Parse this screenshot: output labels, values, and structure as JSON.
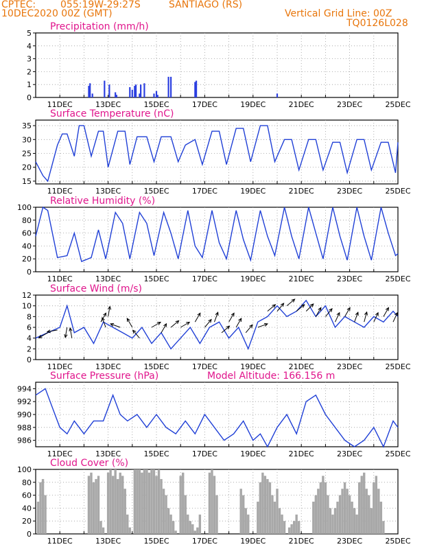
{
  "header": {
    "source": "CPTEC:",
    "coords": "055:19W-29:27S",
    "location": "SANTIAGO (RS)",
    "init_time": "10DEC2020 00Z (GMT)",
    "grid_note": "Vertical Grid Line: 00Z",
    "model": "TQ0126L028",
    "text_color": "#e8750a",
    "title_color": "#e0158c",
    "line_color": "#1f3fd6",
    "bar_color": "#2b3fe0",
    "cloud_color": "#a8a8a8"
  },
  "x_axis": {
    "ticks": [
      "11DEC",
      "13DEC",
      "15DEC",
      "17DEC",
      "19DEC",
      "21DEC",
      "23DEC",
      "25DEC"
    ],
    "range_days": [
      10,
      25
    ]
  },
  "chart_data": [
    {
      "type": "bar",
      "title": "Precipitation (mm/h)",
      "ylim": [
        0,
        5
      ],
      "yticks": [
        "0",
        "1",
        "2",
        "3",
        "4",
        "5"
      ],
      "grid": true,
      "x": [
        12.2,
        12.25,
        12.35,
        12.85,
        13.05,
        13.3,
        13.35,
        13.9,
        14.0,
        14.1,
        14.15,
        14.3,
        14.35,
        14.5,
        14.9,
        15.0,
        15.05,
        15.5,
        15.6,
        16.6,
        16.65,
        20.0
      ],
      "values": [
        0.9,
        1.1,
        0.3,
        1.3,
        1.0,
        0.4,
        0.2,
        0.8,
        0.6,
        0.9,
        1.0,
        0.3,
        1.0,
        1.1,
        0.3,
        0.5,
        0.2,
        1.6,
        1.6,
        1.2,
        1.3,
        0.3
      ]
    },
    {
      "type": "line",
      "title": "Surface Temperature (nC)",
      "ylim": [
        14,
        37
      ],
      "yticks": [
        "15",
        "20",
        "25",
        "30",
        "35"
      ],
      "grid": true,
      "x": [
        10,
        10.3,
        10.5,
        10.9,
        11.1,
        11.3,
        11.6,
        11.8,
        12.0,
        12.3,
        12.6,
        12.8,
        13.0,
        13.4,
        13.7,
        13.9,
        14.2,
        14.6,
        14.9,
        15.2,
        15.6,
        15.9,
        16.2,
        16.6,
        16.9,
        17.3,
        17.6,
        17.9,
        18.3,
        18.6,
        18.9,
        19.3,
        19.6,
        19.9,
        20.3,
        20.6,
        20.9,
        21.3,
        21.6,
        21.9,
        22.3,
        22.6,
        22.9,
        23.3,
        23.6,
        23.9,
        24.3,
        24.6,
        24.9,
        25.0
      ],
      "values": [
        22,
        17,
        15,
        28,
        32,
        32,
        24,
        35,
        35,
        24,
        33,
        33,
        20,
        33,
        33,
        21,
        31,
        31,
        22,
        31,
        31,
        22,
        28,
        30,
        21,
        33,
        33,
        21,
        34,
        34,
        22,
        35,
        35,
        22,
        30,
        30,
        19,
        30,
        30,
        19,
        29,
        29,
        18,
        30,
        30,
        19,
        29,
        29,
        18,
        29
      ]
    },
    {
      "type": "line",
      "title": "Relative Humidity (%)",
      "ylim": [
        0,
        100
      ],
      "yticks": [
        "0",
        "20",
        "40",
        "60",
        "80",
        "100"
      ],
      "grid": true,
      "x": [
        10,
        10.3,
        10.5,
        10.9,
        11.3,
        11.6,
        11.9,
        12.3,
        12.6,
        12.9,
        13.3,
        13.6,
        13.9,
        14.3,
        14.6,
        14.9,
        15.3,
        15.6,
        15.9,
        16.3,
        16.6,
        16.9,
        17.3,
        17.6,
        17.9,
        18.3,
        18.6,
        18.9,
        19.3,
        19.6,
        19.9,
        20.3,
        20.6,
        20.9,
        21.3,
        21.6,
        21.9,
        22.3,
        22.6,
        22.9,
        23.3,
        23.6,
        23.9,
        24.3,
        24.6,
        24.9,
        25.0
      ],
      "values": [
        55,
        100,
        95,
        22,
        25,
        60,
        16,
        22,
        65,
        20,
        92,
        75,
        20,
        92,
        75,
        25,
        92,
        60,
        20,
        95,
        40,
        22,
        95,
        45,
        20,
        95,
        50,
        18,
        95,
        55,
        25,
        100,
        55,
        20,
        100,
        60,
        20,
        100,
        55,
        18,
        100,
        55,
        18,
        100,
        60,
        25,
        28
      ]
    },
    {
      "type": "line",
      "title": "Surface Wind (m/s)",
      "ylim": [
        0,
        12
      ],
      "yticks": [
        "0",
        "2",
        "4",
        "6",
        "8",
        "10",
        "12"
      ],
      "grid": true,
      "x": [
        10,
        10.5,
        11.0,
        11.3,
        11.6,
        12.0,
        12.4,
        12.8,
        13.2,
        13.6,
        14.0,
        14.4,
        14.8,
        15.2,
        15.6,
        16.0,
        16.4,
        16.8,
        17.2,
        17.6,
        18.0,
        18.4,
        18.8,
        19.2,
        19.6,
        20.0,
        20.4,
        20.8,
        21.2,
        21.6,
        22.0,
        22.4,
        22.8,
        23.2,
        23.6,
        24.0,
        24.4,
        24.8,
        25.0
      ],
      "values": [
        4,
        5,
        6,
        10,
        5,
        6,
        3,
        7,
        6,
        5,
        4,
        6,
        3,
        5,
        2,
        4,
        6,
        3,
        6,
        7,
        4,
        6,
        2,
        7,
        8,
        10,
        8,
        9,
        11,
        8,
        10,
        6,
        8,
        7,
        6,
        8,
        7,
        9,
        8
      ]
    },
    {
      "type": "line",
      "title": "Surface Pressure (hPa)",
      "subtitle": "Model Altitude: 166.156 m",
      "ylim": [
        985,
        995
      ],
      "yticks": [
        "986",
        "988",
        "990",
        "992",
        "994"
      ],
      "grid": true,
      "x": [
        10,
        10.4,
        10.7,
        11.0,
        11.3,
        11.6,
        12.0,
        12.4,
        12.8,
        13.2,
        13.5,
        13.8,
        14.2,
        14.6,
        15.0,
        15.4,
        15.8,
        16.2,
        16.6,
        17.0,
        17.4,
        17.8,
        18.2,
        18.6,
        19.0,
        19.3,
        19.6,
        20.0,
        20.4,
        20.8,
        21.2,
        21.6,
        22.0,
        22.4,
        22.8,
        23.2,
        23.6,
        24.0,
        24.4,
        24.8,
        25.0
      ],
      "values": [
        993,
        994,
        991,
        988,
        987,
        989,
        987,
        989,
        989,
        993,
        990,
        989,
        990,
        988,
        990,
        988,
        987,
        989,
        987,
        990,
        988,
        986,
        987,
        989,
        986,
        987,
        985,
        988,
        990,
        987,
        992,
        993,
        990,
        988,
        986,
        985,
        986,
        988,
        985,
        989,
        988
      ]
    },
    {
      "type": "bar",
      "title": "Cloud Cover (%)",
      "ylim": [
        0,
        100
      ],
      "yticks": [
        "0",
        "20",
        "40",
        "60",
        "80",
        "100"
      ],
      "grid": true,
      "x": [
        10.1,
        10.2,
        10.3,
        10.4,
        12.2,
        12.3,
        12.4,
        12.5,
        12.6,
        12.7,
        12.8,
        13.0,
        13.1,
        13.2,
        13.3,
        13.4,
        13.5,
        13.6,
        13.7,
        13.8,
        13.9,
        14.1,
        14.2,
        14.3,
        14.4,
        14.5,
        14.6,
        14.7,
        14.8,
        14.9,
        15.0,
        15.1,
        15.2,
        15.3,
        15.4,
        15.5,
        15.6,
        15.7,
        15.8,
        16.0,
        16.1,
        16.2,
        16.3,
        16.4,
        16.5,
        16.6,
        16.7,
        16.8,
        17.2,
        17.3,
        17.4,
        17.5,
        18.5,
        18.6,
        18.7,
        18.8,
        19.2,
        19.3,
        19.4,
        19.5,
        19.6,
        19.7,
        19.8,
        19.9,
        20.0,
        20.1,
        20.2,
        20.3,
        20.5,
        20.6,
        20.7,
        20.8,
        20.9,
        21.5,
        21.6,
        21.7,
        21.8,
        21.9,
        22.0,
        22.1,
        22.2,
        22.3,
        22.4,
        22.5,
        22.6,
        22.7,
        22.8,
        22.9,
        23.0,
        23.1,
        23.2,
        23.3,
        23.4,
        23.5,
        23.6,
        23.7,
        23.8,
        23.9,
        24.0,
        24.1,
        24.2,
        24.3,
        24.4
      ],
      "values": [
        50,
        80,
        85,
        60,
        90,
        95,
        80,
        85,
        90,
        20,
        10,
        95,
        100,
        90,
        100,
        85,
        95,
        90,
        70,
        30,
        10,
        100,
        100,
        100,
        95,
        100,
        100,
        95,
        100,
        100,
        90,
        100,
        85,
        70,
        60,
        40,
        30,
        20,
        5,
        90,
        95,
        60,
        30,
        20,
        15,
        5,
        10,
        30,
        95,
        100,
        90,
        60,
        70,
        60,
        40,
        30,
        50,
        80,
        95,
        90,
        85,
        80,
        60,
        50,
        70,
        40,
        30,
        20,
        10,
        15,
        20,
        30,
        20,
        50,
        60,
        70,
        80,
        90,
        80,
        60,
        40,
        30,
        40,
        50,
        60,
        70,
        80,
        70,
        60,
        50,
        40,
        30,
        80,
        90,
        95,
        70,
        60,
        40,
        80,
        90,
        70,
        50,
        20
      ]
    }
  ],
  "wind_arrows": [
    {
      "x": 10.5,
      "y": 5,
      "angle": 150
    },
    {
      "x": 10.9,
      "y": 5.5,
      "angle": 170
    },
    {
      "x": 11.3,
      "y": 6,
      "angle": 100
    },
    {
      "x": 11.5,
      "y": 4,
      "angle": 260
    },
    {
      "x": 12.7,
      "y": 7,
      "angle": 300
    },
    {
      "x": 12.9,
      "y": 6,
      "angle": 250
    },
    {
      "x": 13.0,
      "y": 8,
      "angle": 280
    },
    {
      "x": 13.5,
      "y": 6,
      "angle": 200
    },
    {
      "x": 14.0,
      "y": 6,
      "angle": 240
    },
    {
      "x": 14.3,
      "y": 4,
      "angle": 230
    },
    {
      "x": 14.8,
      "y": 6,
      "angle": 330
    },
    {
      "x": 15.2,
      "y": 5,
      "angle": 300
    },
    {
      "x": 15.6,
      "y": 6,
      "angle": 320
    },
    {
      "x": 16.0,
      "y": 6,
      "angle": 330
    },
    {
      "x": 16.6,
      "y": 7,
      "angle": 300
    },
    {
      "x": 17.0,
      "y": 6,
      "angle": 310
    },
    {
      "x": 17.4,
      "y": 7,
      "angle": 290
    },
    {
      "x": 17.7,
      "y": 5,
      "angle": 320
    },
    {
      "x": 18.0,
      "y": 7,
      "angle": 300
    },
    {
      "x": 18.3,
      "y": 6,
      "angle": 300
    },
    {
      "x": 18.7,
      "y": 5,
      "angle": 310
    },
    {
      "x": 19.2,
      "y": 6,
      "angle": 340
    },
    {
      "x": 19.6,
      "y": 9,
      "angle": 320
    },
    {
      "x": 20.0,
      "y": 9,
      "angle": 310
    },
    {
      "x": 20.4,
      "y": 10,
      "angle": 320
    },
    {
      "x": 20.8,
      "y": 9,
      "angle": 320
    },
    {
      "x": 21.2,
      "y": 9,
      "angle": 315
    },
    {
      "x": 21.6,
      "y": 8,
      "angle": 300
    },
    {
      "x": 22.0,
      "y": 8,
      "angle": 310
    },
    {
      "x": 22.4,
      "y": 7,
      "angle": 295
    },
    {
      "x": 22.8,
      "y": 8,
      "angle": 300
    },
    {
      "x": 23.2,
      "y": 7,
      "angle": 290
    },
    {
      "x": 23.6,
      "y": 7,
      "angle": 285
    },
    {
      "x": 24.0,
      "y": 7,
      "angle": 295
    },
    {
      "x": 24.4,
      "y": 8,
      "angle": 300
    },
    {
      "x": 24.8,
      "y": 7,
      "angle": 295
    }
  ]
}
